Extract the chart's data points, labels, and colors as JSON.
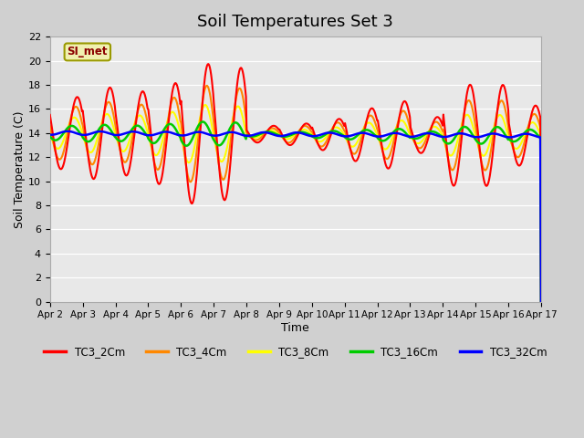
{
  "title": "Soil Temperatures Set 3",
  "xlabel": "Time",
  "ylabel": "Soil Temperature (C)",
  "ylim": [
    0,
    22
  ],
  "yticks": [
    0,
    2,
    4,
    6,
    8,
    10,
    12,
    14,
    16,
    18,
    20,
    22
  ],
  "xlabels": [
    "Apr 2",
    "Apr 3",
    "Apr 4",
    "Apr 5",
    "Apr 6",
    "Apr 7",
    "Apr 8",
    "Apr 9",
    "Apr 10",
    "Apr 11",
    "Apr 12",
    "Apr 13",
    "Apr 14",
    "Apr 15",
    "Apr 16",
    "Apr 17"
  ],
  "annotation": "SI_met",
  "legend_labels": [
    "TC3_2Cm",
    "TC3_4Cm",
    "TC3_8Cm",
    "TC3_16Cm",
    "TC3_32Cm"
  ],
  "colors": [
    "#ff0000",
    "#ff8800",
    "#ffff00",
    "#00cc00",
    "#0000ff"
  ],
  "fig_bg": "#d0d0d0",
  "plot_bg": "#e8e8e8",
  "title_fontsize": 13,
  "n_points": 720,
  "days": 15,
  "base_temp": 14.0,
  "amps_2cm": [
    3.0,
    3.8,
    3.5,
    4.2,
    5.8,
    5.5,
    0.7,
    0.9,
    1.3,
    2.2,
    2.8,
    1.5,
    4.2,
    4.2,
    2.5
  ],
  "amps_4cm": [
    2.2,
    2.6,
    2.4,
    3.0,
    4.0,
    3.8,
    0.5,
    0.7,
    1.0,
    1.6,
    2.0,
    1.1,
    2.9,
    2.9,
    1.8
  ],
  "amps_8cm": [
    1.3,
    1.6,
    1.5,
    1.8,
    2.4,
    2.3,
    0.3,
    0.4,
    0.6,
    1.0,
    1.2,
    0.7,
    1.7,
    1.7,
    1.1
  ],
  "amps_16cm": [
    0.6,
    0.7,
    0.65,
    0.8,
    1.0,
    0.95,
    0.2,
    0.2,
    0.3,
    0.4,
    0.5,
    0.3,
    0.7,
    0.7,
    0.5
  ],
  "amps_32cm": [
    0.15,
    0.15,
    0.15,
    0.15,
    0.15,
    0.15,
    0.15,
    0.15,
    0.15,
    0.15,
    0.15,
    0.15,
    0.15,
    0.15,
    0.15
  ],
  "phases_hours": [
    0.0,
    1.0,
    2.2,
    4.0,
    7.0
  ],
  "peak_hour": 14.0,
  "linewidths": [
    1.5,
    1.5,
    1.5,
    1.8,
    1.8
  ],
  "zorders": [
    5,
    4,
    3,
    6,
    7
  ]
}
